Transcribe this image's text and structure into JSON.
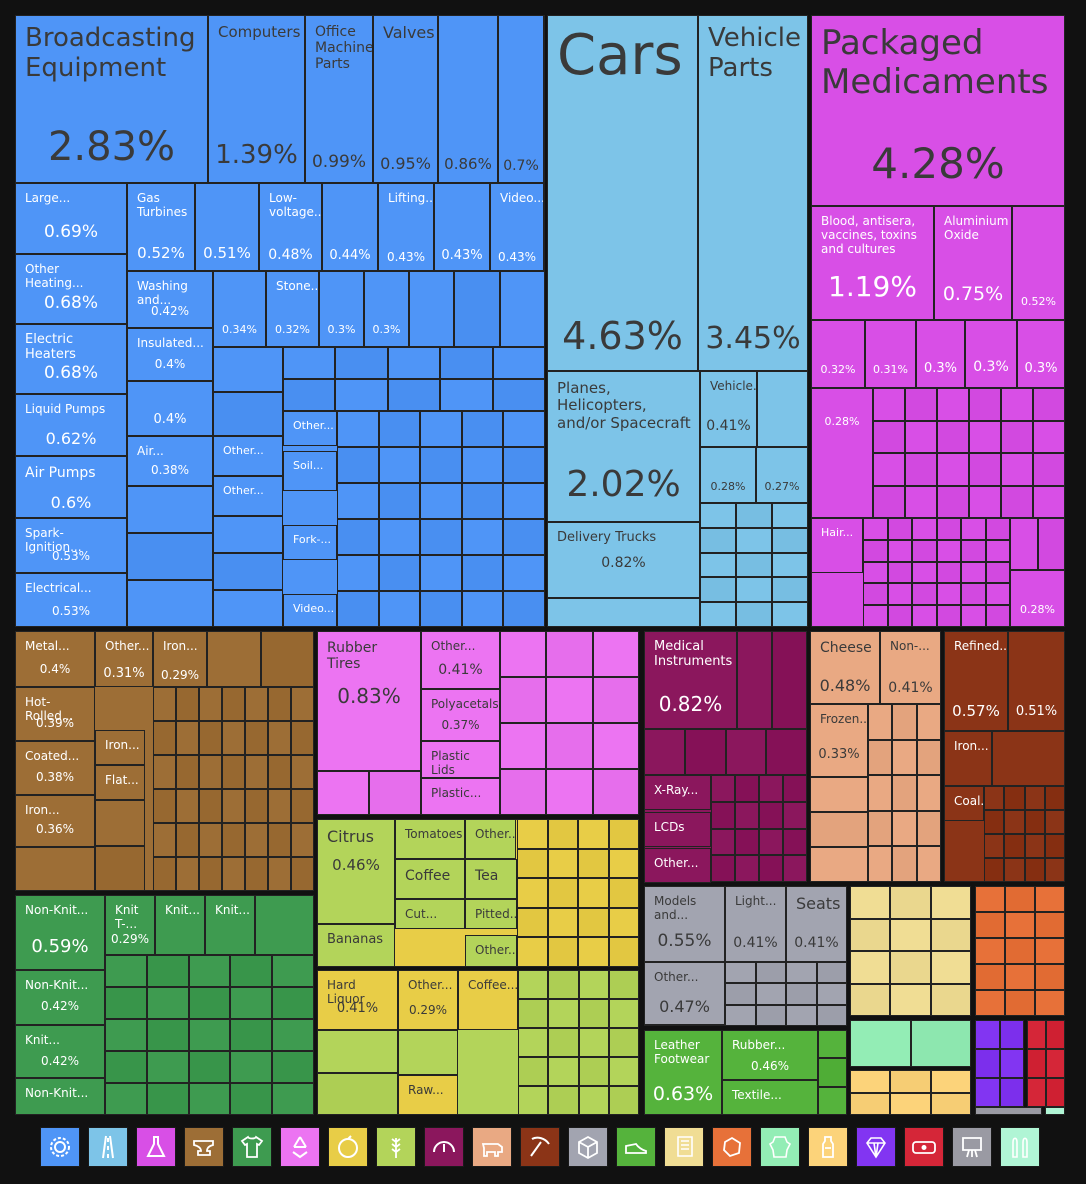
{
  "chart_data": {
    "type": "treemap",
    "title": "",
    "colors": {
      "machines": "#4f95f7",
      "transportation": "#7dc4e8",
      "chemical": "#d84fe6",
      "metals": "#9d6e36",
      "textiles": "#3e9b50",
      "plastics": "#ec74f2",
      "foodstuffs": "#e8cd47",
      "vegetables": "#b3d45a",
      "instruments": "#8b175d",
      "animal": "#e9a983",
      "mineral": "#8b3417",
      "misc": "#a2a4b0",
      "footwear": "#55b33c",
      "paper": "#f0dd94",
      "stone": "#e77139",
      "animal_hides": "#93edb5",
      "weapons": "#fcd37a",
      "precious": "#8235f2",
      "arts": "#d52638",
      "other_gray": "#9a9aa3",
      "other_mint": "#b0f5d5"
    },
    "items": [
      {
        "label": "Broadcasting Equipment",
        "value": 2.83,
        "sector": "machines"
      },
      {
        "label": "Computers",
        "value": 1.39,
        "sector": "machines"
      },
      {
        "label": "Office Machine Parts",
        "value": 0.99,
        "sector": "machines"
      },
      {
        "label": "Valves",
        "value": 0.95,
        "sector": "machines"
      },
      {
        "label": "",
        "value": 0.86,
        "sector": "machines"
      },
      {
        "label": "",
        "value": 0.7,
        "sector": "machines"
      },
      {
        "label": "Large...",
        "value": 0.69,
        "sector": "machines"
      },
      {
        "label": "Gas Turbines",
        "value": 0.52,
        "sector": "machines"
      },
      {
        "label": "",
        "value": 0.51,
        "sector": "machines"
      },
      {
        "label": "Low-voltage...",
        "value": 0.48,
        "sector": "machines"
      },
      {
        "label": "",
        "value": 0.44,
        "sector": "machines"
      },
      {
        "label": "Lifting...",
        "value": 0.43,
        "sector": "machines"
      },
      {
        "label": "",
        "value": 0.43,
        "sector": "machines"
      },
      {
        "label": "Video...",
        "value": 0.43,
        "sector": "machines"
      },
      {
        "label": "Other Heating...",
        "value": 0.68,
        "sector": "machines"
      },
      {
        "label": "Washing and...",
        "value": 0.42,
        "sector": "machines"
      },
      {
        "label": "",
        "value": 0.34,
        "sector": "machines"
      },
      {
        "label": "Stone...",
        "value": 0.32,
        "sector": "machines"
      },
      {
        "label": "",
        "value": 0.3,
        "sector": "machines"
      },
      {
        "label": "",
        "value": 0.3,
        "sector": "machines"
      },
      {
        "label": "Electric Heaters",
        "value": 0.68,
        "sector": "machines"
      },
      {
        "label": "Insulated...",
        "value": 0.4,
        "sector": "machines"
      },
      {
        "label": "",
        "value": 0.4,
        "sector": "machines"
      },
      {
        "label": "Liquid Pumps",
        "value": 0.62,
        "sector": "machines"
      },
      {
        "label": "Air...",
        "value": 0.38,
        "sector": "machines"
      },
      {
        "label": "Air Pumps",
        "value": 0.6,
        "sector": "machines"
      },
      {
        "label": "Spark-Ignition...",
        "value": 0.53,
        "sector": "machines"
      },
      {
        "label": "Electrical...",
        "value": 0.53,
        "sector": "machines"
      },
      {
        "label": "Other...",
        "value": null,
        "sector": "machines"
      },
      {
        "label": "Soil...",
        "value": null,
        "sector": "machines"
      },
      {
        "label": "Fork-...",
        "value": null,
        "sector": "machines"
      },
      {
        "label": "Video...",
        "value": null,
        "sector": "machines"
      },
      {
        "label": "Other...",
        "value": null,
        "sector": "machines"
      },
      {
        "label": "Other...",
        "value": null,
        "sector": "machines"
      },
      {
        "label": "Cars",
        "value": 4.63,
        "sector": "transportation"
      },
      {
        "label": "Vehicle Parts",
        "value": 3.45,
        "sector": "transportation"
      },
      {
        "label": "Planes, Helicopters, and/or Spacecraft",
        "value": 2.02,
        "sector": "transportation"
      },
      {
        "label": "Vehicle...",
        "value": 0.41,
        "sector": "transportation"
      },
      {
        "label": "",
        "value": 0.28,
        "sector": "transportation"
      },
      {
        "label": "",
        "value": 0.27,
        "sector": "transportation"
      },
      {
        "label": "Delivery Trucks",
        "value": 0.82,
        "sector": "transportation"
      },
      {
        "label": "Packaged Medicaments",
        "value": 4.28,
        "sector": "chemical"
      },
      {
        "label": "Blood, antisera, vaccines, toxins and cultures",
        "value": 1.19,
        "sector": "chemical"
      },
      {
        "label": "Aluminium Oxide",
        "value": 0.75,
        "sector": "chemical"
      },
      {
        "label": "",
        "value": 0.52,
        "sector": "chemical"
      },
      {
        "label": "",
        "value": 0.32,
        "sector": "chemical"
      },
      {
        "label": "",
        "value": 0.31,
        "sector": "chemical"
      },
      {
        "label": "",
        "value": 0.3,
        "sector": "chemical"
      },
      {
        "label": "",
        "value": 0.3,
        "sector": "chemical"
      },
      {
        "label": "",
        "value": 0.3,
        "sector": "chemical"
      },
      {
        "label": "",
        "value": 0.28,
        "sector": "chemical"
      },
      {
        "label": "Hair...",
        "value": null,
        "sector": "chemical"
      },
      {
        "label": "",
        "value": 0.28,
        "sector": "chemical"
      },
      {
        "label": "Metal...",
        "value": 0.4,
        "sector": "metals"
      },
      {
        "label": "Other...",
        "value": 0.31,
        "sector": "metals"
      },
      {
        "label": "Iron...",
        "value": 0.29,
        "sector": "metals"
      },
      {
        "label": "Hot-Rolled...",
        "value": 0.39,
        "sector": "metals"
      },
      {
        "label": "Coated...",
        "value": 0.38,
        "sector": "metals"
      },
      {
        "label": "Iron...",
        "value": 0.36,
        "sector": "metals"
      },
      {
        "label": "Iron...",
        "value": null,
        "sector": "metals"
      },
      {
        "label": "Flat...",
        "value": null,
        "sector": "metals"
      },
      {
        "label": "Non-Knit...",
        "value": 0.59,
        "sector": "textiles"
      },
      {
        "label": "Knit T-...",
        "value": 0.29,
        "sector": "textiles"
      },
      {
        "label": "Knit...",
        "value": null,
        "sector": "textiles"
      },
      {
        "label": "Knit...",
        "value": null,
        "sector": "textiles"
      },
      {
        "label": "Non-Knit...",
        "value": 0.42,
        "sector": "textiles"
      },
      {
        "label": "Knit...",
        "value": 0.42,
        "sector": "textiles"
      },
      {
        "label": "Non-Knit...",
        "value": null,
        "sector": "textiles"
      },
      {
        "label": "Rubber Tires",
        "value": 0.83,
        "sector": "plastics"
      },
      {
        "label": "Other...",
        "value": 0.41,
        "sector": "plastics"
      },
      {
        "label": "Polyacetals",
        "value": 0.37,
        "sector": "plastics"
      },
      {
        "label": "Plastic Lids",
        "value": null,
        "sector": "plastics"
      },
      {
        "label": "Plastic...",
        "value": null,
        "sector": "plastics"
      },
      {
        "label": "Citrus",
        "value": 0.46,
        "sector": "vegetables"
      },
      {
        "label": "Tomatoes",
        "value": null,
        "sector": "vegetables"
      },
      {
        "label": "Other...",
        "value": null,
        "sector": "vegetables"
      },
      {
        "label": "Coffee",
        "value": null,
        "sector": "vegetables"
      },
      {
        "label": "Tea",
        "value": null,
        "sector": "vegetables"
      },
      {
        "label": "Cut...",
        "value": null,
        "sector": "vegetables"
      },
      {
        "label": "Pitted...",
        "value": null,
        "sector": "vegetables"
      },
      {
        "label": "Bananas",
        "value": null,
        "sector": "vegetables"
      },
      {
        "label": "Other...",
        "value": null,
        "sector": "vegetables"
      },
      {
        "label": "Hard Liquor",
        "value": 0.41,
        "sector": "foodstuffs"
      },
      {
        "label": "Other...",
        "value": 0.29,
        "sector": "foodstuffs"
      },
      {
        "label": "Coffee...",
        "value": null,
        "sector": "foodstuffs"
      },
      {
        "label": "Raw...",
        "value": null,
        "sector": "foodstuffs"
      },
      {
        "label": "Medical Instruments",
        "value": 0.82,
        "sector": "instruments"
      },
      {
        "label": "X-Ray...",
        "value": null,
        "sector": "instruments"
      },
      {
        "label": "LCDs",
        "value": null,
        "sector": "instruments"
      },
      {
        "label": "Other...",
        "value": null,
        "sector": "instruments"
      },
      {
        "label": "Models and...",
        "value": 0.55,
        "sector": "misc"
      },
      {
        "label": "Light...",
        "value": 0.41,
        "sector": "misc"
      },
      {
        "label": "Seats",
        "value": 0.41,
        "sector": "misc"
      },
      {
        "label": "Other...",
        "value": 0.47,
        "sector": "misc"
      },
      {
        "label": "Leather Footwear",
        "value": 0.63,
        "sector": "footwear"
      },
      {
        "label": "Rubber...",
        "value": 0.46,
        "sector": "footwear"
      },
      {
        "label": "Textile...",
        "value": null,
        "sector": "footwear"
      },
      {
        "label": "Cheese",
        "value": 0.48,
        "sector": "animal"
      },
      {
        "label": "Non-...",
        "value": 0.41,
        "sector": "animal"
      },
      {
        "label": "Frozen...",
        "value": 0.33,
        "sector": "animal"
      },
      {
        "label": "Refined...",
        "value": 0.57,
        "sector": "mineral"
      },
      {
        "label": "",
        "value": 0.51,
        "sector": "mineral"
      },
      {
        "label": "Iron...",
        "value": null,
        "sector": "mineral"
      },
      {
        "label": "Coal...",
        "value": null,
        "sector": "mineral"
      }
    ],
    "legend": [
      {
        "name": "gear-icon",
        "color": "#4f95f7"
      },
      {
        "name": "road-icon",
        "color": "#7dc4e8"
      },
      {
        "name": "flask-icon",
        "color": "#d84fe6"
      },
      {
        "name": "anvil-icon",
        "color": "#9d6e36"
      },
      {
        "name": "shirt-icon",
        "color": "#3e9b50"
      },
      {
        "name": "recycle-icon",
        "color": "#ec74f2"
      },
      {
        "name": "orange-icon",
        "color": "#e8cd47"
      },
      {
        "name": "wheat-icon",
        "color": "#b3d45a"
      },
      {
        "name": "gauge-icon",
        "color": "#8b175d"
      },
      {
        "name": "cow-icon",
        "color": "#e9a983"
      },
      {
        "name": "pickaxe-icon",
        "color": "#8b3417"
      },
      {
        "name": "box-icon",
        "color": "#a2a4b0"
      },
      {
        "name": "shoe-icon",
        "color": "#55b33c"
      },
      {
        "name": "scroll-icon",
        "color": "#f0dd94"
      },
      {
        "name": "stone-icon",
        "color": "#e77139"
      },
      {
        "name": "hide-icon",
        "color": "#93edb5"
      },
      {
        "name": "bottle-icon",
        "color": "#fcd37a"
      },
      {
        "name": "diamond-icon",
        "color": "#8235f2"
      },
      {
        "name": "banknote-icon",
        "color": "#d52638"
      },
      {
        "name": "easel-icon",
        "color": "#9a9aa3"
      },
      {
        "name": "bullets-icon",
        "color": "#b0f5d5"
      }
    ]
  }
}
